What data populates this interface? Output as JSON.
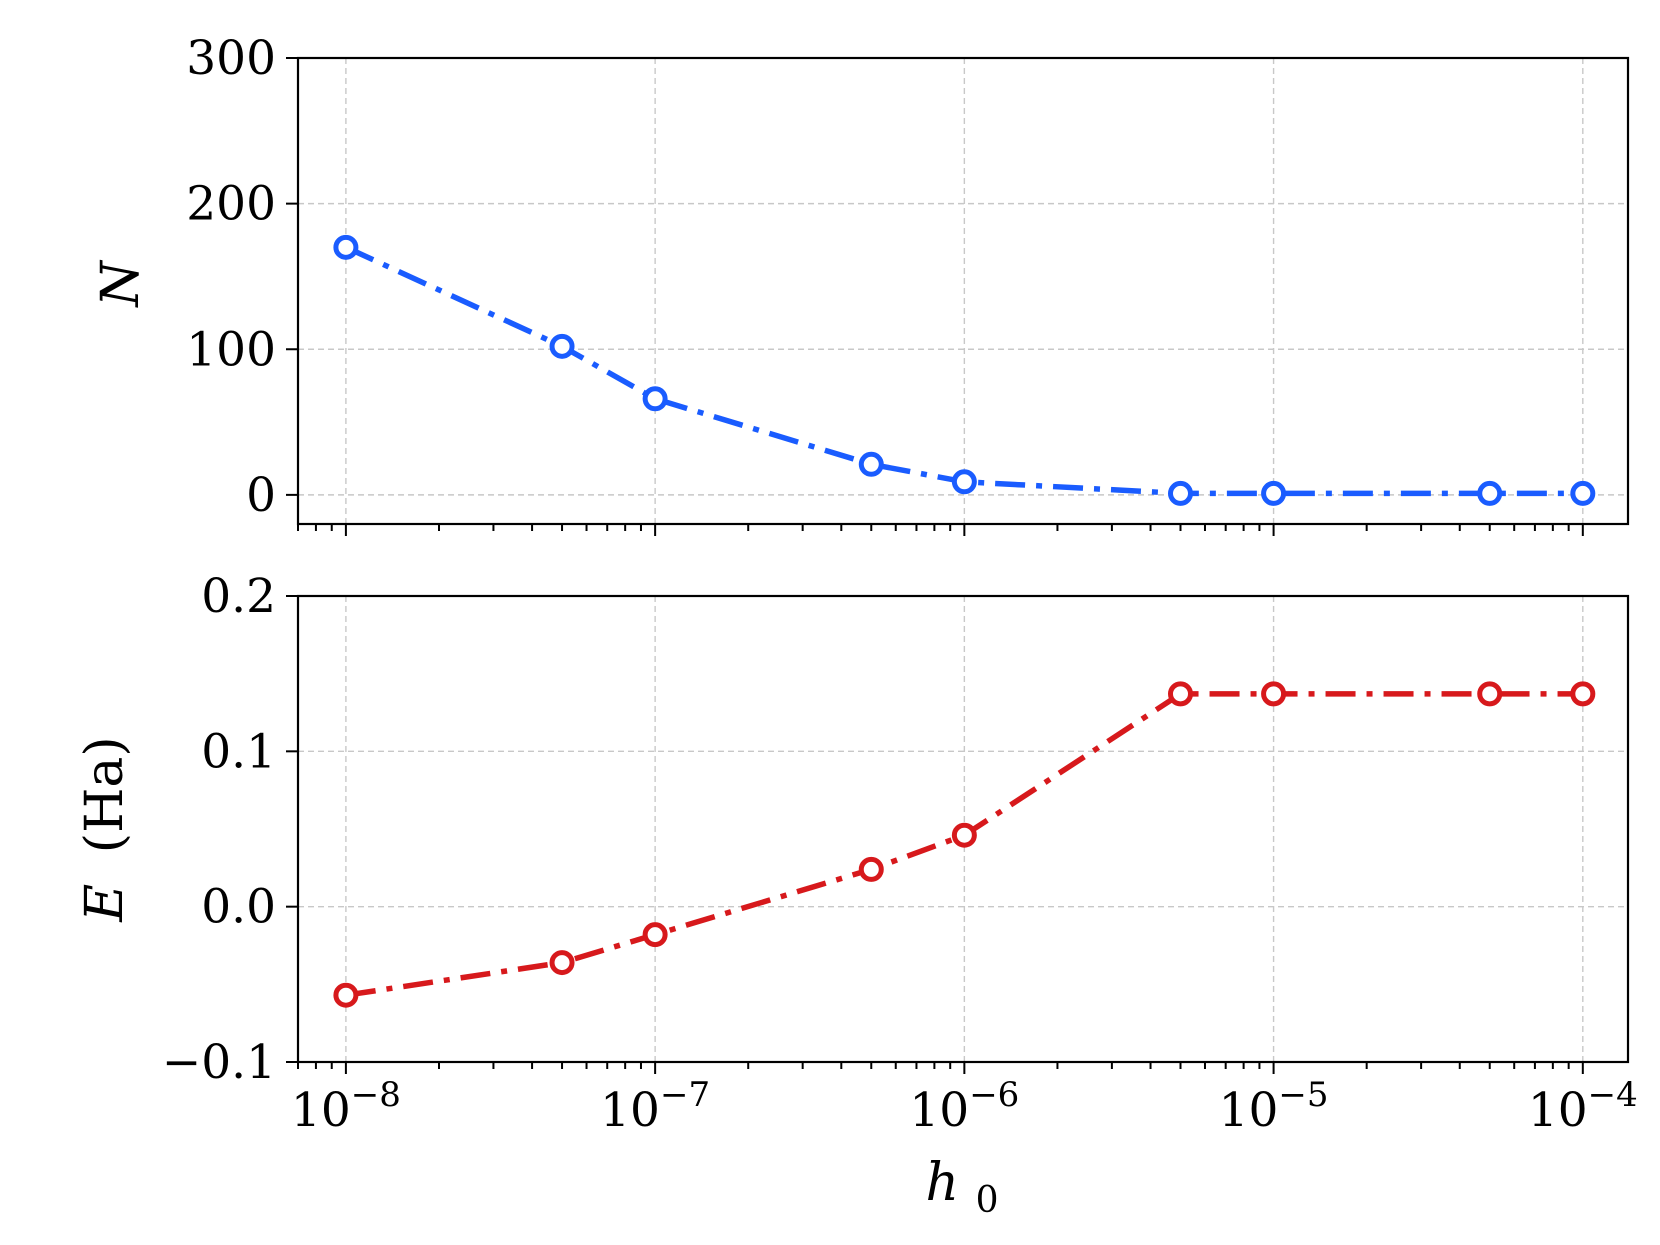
{
  "chart_data": [
    {
      "type": "line",
      "ylabel": "N",
      "xscale": "log",
      "xlim": [
        7e-09,
        0.00014
      ],
      "ylim": [
        -20,
        300
      ],
      "yticks": [
        0,
        100,
        200,
        300
      ],
      "ytick_labels": [
        "0",
        "100",
        "200",
        "300"
      ],
      "grid": true,
      "series": [
        {
          "color": "#1a5cff",
          "marker": "open-circle",
          "linestyle": "dash-dot",
          "points": [
            {
              "x": 1e-08,
              "y": 170
            },
            {
              "x": 5e-08,
              "y": 102
            },
            {
              "x": 1e-07,
              "y": 66
            },
            {
              "x": 5e-07,
              "y": 21
            },
            {
              "x": 1e-06,
              "y": 9
            },
            {
              "x": 5e-06,
              "y": 1
            },
            {
              "x": 1e-05,
              "y": 1
            },
            {
              "x": 5e-05,
              "y": 1
            },
            {
              "x": 0.0001,
              "y": 1
            }
          ]
        }
      ]
    },
    {
      "type": "line",
      "xlabel": "h",
      "xlabel_sub": "0",
      "ylabel": "E",
      "ylabel_unit": "(Ha)",
      "xscale": "log",
      "xlim": [
        7e-09,
        0.00014
      ],
      "ylim": [
        -0.1,
        0.2
      ],
      "yticks": [
        -0.1,
        0.0,
        0.1,
        0.2
      ],
      "ytick_labels": [
        "−0.1",
        "0.0",
        "0.1",
        "0.2"
      ],
      "xticks": [
        1e-08,
        1e-07,
        1e-06,
        1e-05,
        0.0001
      ],
      "xtick_base": "10",
      "xtick_exponents": [
        "−8",
        "−7",
        "−6",
        "−5",
        "−4"
      ],
      "grid": true,
      "series": [
        {
          "color": "#d7191c",
          "marker": "open-circle",
          "linestyle": "dash-dot",
          "points": [
            {
              "x": 1e-08,
              "y": -0.057
            },
            {
              "x": 5e-08,
              "y": -0.036
            },
            {
              "x": 1e-07,
              "y": -0.018
            },
            {
              "x": 5e-07,
              "y": 0.024
            },
            {
              "x": 1e-06,
              "y": 0.046
            },
            {
              "x": 5e-06,
              "y": 0.137
            },
            {
              "x": 1e-05,
              "y": 0.137
            },
            {
              "x": 5e-05,
              "y": 0.137
            },
            {
              "x": 0.0001,
              "y": 0.137
            }
          ]
        }
      ]
    }
  ]
}
